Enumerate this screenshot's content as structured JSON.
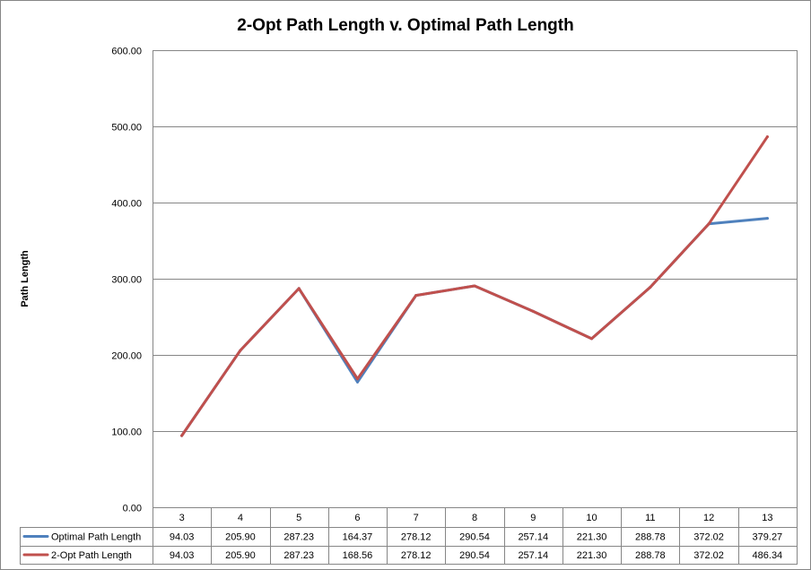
{
  "chart_data": {
    "type": "line",
    "title": "2-Opt Path Length v. Optimal Path Length",
    "xlabel": "",
    "ylabel": "Path Length",
    "categories": [
      "3",
      "4",
      "5",
      "6",
      "7",
      "8",
      "9",
      "10",
      "11",
      "12",
      "13"
    ],
    "ylim": [
      0,
      600
    ],
    "yticks": [
      0,
      100,
      200,
      300,
      400,
      500,
      600
    ],
    "grid": true,
    "legend": "bottom",
    "series": [
      {
        "name": "Optimal Path Length",
        "color": "#4F81BD",
        "values": [
          94.03,
          205.9,
          287.23,
          164.37,
          278.12,
          290.54,
          257.14,
          221.3,
          288.78,
          372.02,
          379.27
        ]
      },
      {
        "name": "2-Opt Path Length",
        "color": "#C0504D",
        "values": [
          94.03,
          205.9,
          287.23,
          168.56,
          278.12,
          290.54,
          257.14,
          221.3,
          288.78,
          372.02,
          486.34
        ]
      }
    ]
  }
}
